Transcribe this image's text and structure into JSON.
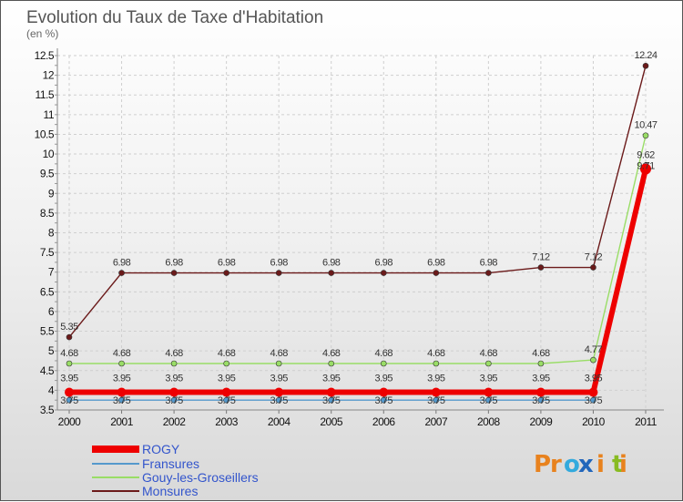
{
  "chart_data": {
    "type": "line",
    "title": "Evolution du Taux de Taxe d'Habitation",
    "subtitle": "(en %)",
    "xlabel": "",
    "ylabel": "",
    "ylim": [
      3.5,
      12.5
    ],
    "y_ticks": [
      "3.5",
      "4",
      "4.5",
      "5",
      "5.5",
      "6",
      "6.5",
      "7",
      "7.5",
      "8",
      "8.5",
      "9",
      "9.5",
      "10",
      "10.5",
      "11",
      "11.5",
      "12",
      "12.5"
    ],
    "x": [
      "2000",
      "2001",
      "2002",
      "2003",
      "2004",
      "2005",
      "2006",
      "2007",
      "2008",
      "2009",
      "2010",
      "2011"
    ],
    "grid": true,
    "legend_position": "bottom-left",
    "series": [
      {
        "name": "Monsures",
        "color": "#6b1a1a",
        "values": [
          5.35,
          6.98,
          6.98,
          6.98,
          6.98,
          6.98,
          6.98,
          6.98,
          6.98,
          7.12,
          7.12,
          12.24
        ],
        "labels": [
          "5.35",
          "6.98",
          "6.98",
          "6.98",
          "6.98",
          "6.98",
          "6.98",
          "6.98",
          "6.98",
          "7.12",
          "7.12",
          "12.24"
        ]
      },
      {
        "name": "Gouy-les-Groseillers",
        "color": "#99dd66",
        "values": [
          4.68,
          4.68,
          4.68,
          4.68,
          4.68,
          4.68,
          4.68,
          4.68,
          4.68,
          4.68,
          4.77,
          10.47
        ],
        "labels": [
          "4.68",
          "4.68",
          "4.68",
          "4.68",
          "4.68",
          "4.68",
          "4.68",
          "4.68",
          "4.68",
          "4.68",
          "4.77",
          "10.47"
        ]
      },
      {
        "name": "Fransures",
        "color": "#5599cc",
        "values": [
          3.75,
          3.75,
          3.75,
          3.75,
          3.75,
          3.75,
          3.75,
          3.75,
          3.75,
          3.75,
          3.75,
          9.71
        ],
        "labels": [
          "3.75",
          "3.75",
          "3.75",
          "3.75",
          "3.75",
          "3.75",
          "3.75",
          "3.75",
          "3.75",
          "3.75",
          "3.75",
          "9.71"
        ]
      },
      {
        "name": "ROGY",
        "color": "#ee0000",
        "values": [
          3.95,
          3.95,
          3.95,
          3.95,
          3.95,
          3.95,
          3.95,
          3.95,
          3.95,
          3.95,
          3.95,
          9.62
        ],
        "labels": [
          "3.95",
          "3.95",
          "3.95",
          "3.95",
          "3.95",
          "3.95",
          "3.95",
          "3.95",
          "3.95",
          "3.95",
          "3.95",
          "9.62"
        ]
      }
    ],
    "legend": [
      {
        "name": "ROGY",
        "color": "#ee0000"
      },
      {
        "name": "Fransures",
        "color": "#5599cc"
      },
      {
        "name": "Gouy-les-Groseillers",
        "color": "#99dd66"
      },
      {
        "name": "Monsures",
        "color": "#6b1a1a"
      }
    ]
  },
  "logo": {
    "text": "Proxiti",
    "colors": [
      "#e8821e",
      "#e8821e",
      "#33aadd",
      "#2266bb",
      "#e8821e",
      "#88bb22",
      "#e8821e"
    ]
  }
}
